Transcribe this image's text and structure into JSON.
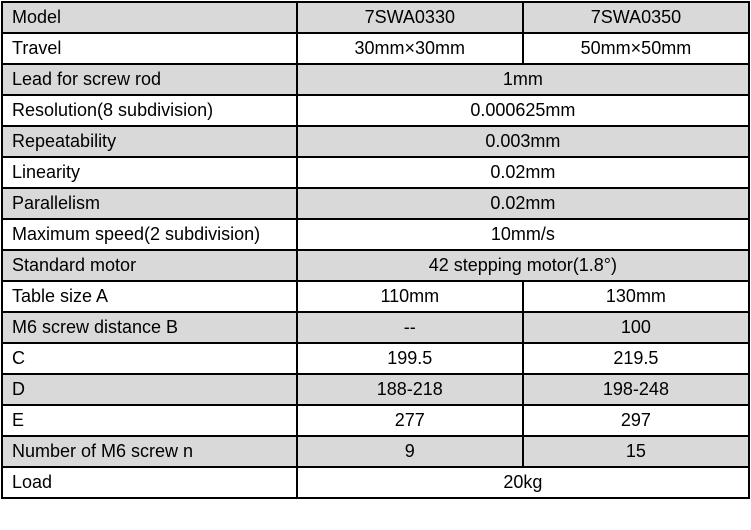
{
  "rows": [
    {
      "label": "Model",
      "values": [
        "7SWA0330",
        "7SWA0350"
      ],
      "shaded": true
    },
    {
      "label": "Travel",
      "values": [
        "30mm×30mm",
        "50mm×50mm"
      ],
      "shaded": false
    },
    {
      "label": "Lead for screw rod",
      "values": [
        "1mm"
      ],
      "shaded": true
    },
    {
      "label": "Resolution(8 subdivision)",
      "values": [
        "0.000625mm"
      ],
      "shaded": false
    },
    {
      "label": "Repeatability",
      "values": [
        "0.003mm"
      ],
      "shaded": true
    },
    {
      "label": "Linearity",
      "values": [
        "0.02mm"
      ],
      "shaded": false
    },
    {
      "label": "Parallelism",
      "values": [
        "0.02mm"
      ],
      "shaded": true
    },
    {
      "label": "Maximum speed(2 subdivision)",
      "values": [
        "10mm/s"
      ],
      "shaded": false
    },
    {
      "label": "Standard motor",
      "values": [
        "42 stepping motor(1.8°)"
      ],
      "shaded": true
    },
    {
      "label": "Table size A",
      "values": [
        "110mm",
        "130mm"
      ],
      "shaded": false
    },
    {
      "label": "M6 screw distance B",
      "values": [
        "--",
        "100"
      ],
      "shaded": true
    },
    {
      "label": "C",
      "values": [
        "199.5",
        "219.5"
      ],
      "shaded": false
    },
    {
      "label": "D",
      "values": [
        "188-218",
        "198-248"
      ],
      "shaded": true
    },
    {
      "label": "E",
      "values": [
        "277",
        "297"
      ],
      "shaded": false
    },
    {
      "label": "Number of M6 screw n",
      "values": [
        "9",
        "15"
      ],
      "shaded": true
    },
    {
      "label": "Load",
      "values": [
        "20kg"
      ],
      "shaded": false
    }
  ],
  "colors": {
    "shaded_row": "#d9d9d9",
    "border": "#000000"
  }
}
